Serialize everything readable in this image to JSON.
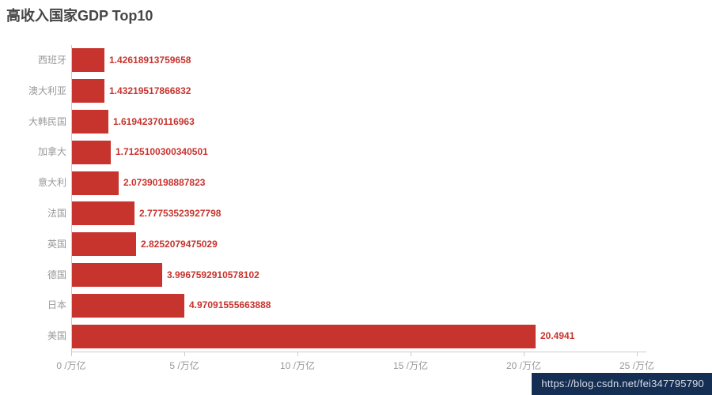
{
  "page": {
    "watermark": "https://blog.csdn.net/fei347795790",
    "watermark_bg": "#142e54"
  },
  "chart_data": {
    "type": "bar",
    "orientation": "horizontal",
    "title": "高收入国家GDP Top10",
    "categories": [
      "西班牙",
      "澳大利亚",
      "大韩民国",
      "加拿大",
      "意大利",
      "法国",
      "英国",
      "德国",
      "日本",
      "美国"
    ],
    "values": [
      "1.42618913759658",
      "1.43219517866832",
      "1.61942370116963",
      "1.7125100300340501",
      "2.07390198887823",
      "2.77753523927798",
      "2.8252079475029",
      "3.9967592910578102",
      "4.97091555663888",
      "20.4941"
    ],
    "x_unit": "/万亿",
    "x_ticks": [
      {
        "v": 0,
        "label": "0 /万亿"
      },
      {
        "v": 5,
        "label": "5 /万亿"
      },
      {
        "v": 10,
        "label": "10 /万亿"
      },
      {
        "v": 15,
        "label": "15 /万亿"
      },
      {
        "v": 20,
        "label": "20 /万亿"
      },
      {
        "v": 25,
        "label": "25 /万亿"
      }
    ],
    "xlim": [
      0,
      25
    ],
    "bar_color": "#c7342e",
    "value_label_color": "#c7342e",
    "axis_color": "#cccccc",
    "category_label_color": "#999999",
    "grid": false,
    "legend": "none"
  }
}
